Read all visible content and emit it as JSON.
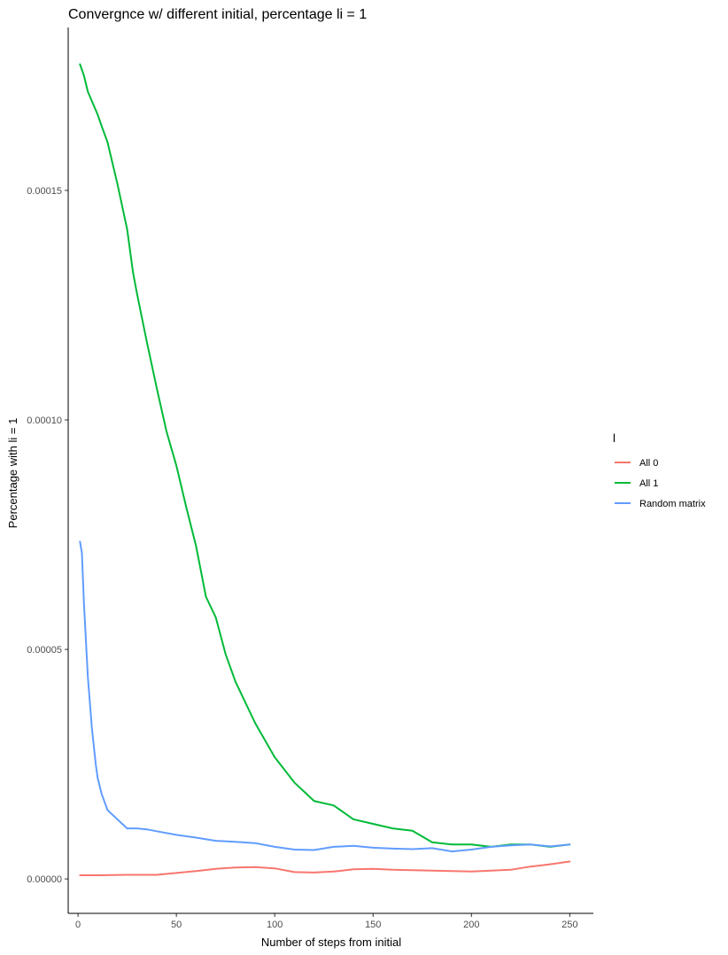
{
  "chart_data": {
    "type": "line",
    "title": "Convergnce w/ different initial, percentage li = 1",
    "xlabel": "Number of steps from initial",
    "ylabel": "Percentage with li = 1",
    "xlim": [
      -5,
      262
    ],
    "ylim": [
      -7.5e-06,
      0.0001855
    ],
    "x_ticks": [
      0,
      50,
      100,
      150,
      200,
      250
    ],
    "y_ticks": [
      0.0,
      5e-05,
      0.0001,
      0.00015
    ],
    "x_tick_labels": [
      "0",
      "50",
      "100",
      "150",
      "200",
      "250"
    ],
    "y_tick_labels": [
      "0.00000",
      "0.00005",
      "0.00010",
      "0.00015"
    ],
    "grid": false,
    "legend": {
      "title": "l",
      "placement": "right",
      "entries": [
        "All 0",
        "All 1",
        "Random matrix"
      ]
    },
    "series": [
      {
        "name": "All 0",
        "color": "#F8766D",
        "x": [
          1,
          10,
          25,
          40,
          50,
          60,
          70,
          80,
          90,
          100,
          110,
          120,
          130,
          140,
          150,
          160,
          170,
          180,
          190,
          200,
          210,
          220,
          230,
          240,
          250
        ],
        "y": [
          8e-07,
          8e-07,
          9e-07,
          9e-07,
          1.3e-06,
          1.7e-06,
          2.2e-06,
          2.5e-06,
          2.6e-06,
          2.3e-06,
          1.5e-06,
          1.4e-06,
          1.6e-06,
          2.1e-06,
          2.2e-06,
          2e-06,
          1.9e-06,
          1.8e-06,
          1.7e-06,
          1.6e-06,
          1.8e-06,
          2e-06,
          2.7e-06,
          3.2e-06,
          3.8e-06
        ]
      },
      {
        "name": "All 1",
        "color": "#00BA38",
        "x": [
          1,
          3,
          5,
          8,
          10,
          12,
          15,
          20,
          25,
          28,
          30,
          35,
          40,
          45,
          50,
          55,
          60,
          65,
          70,
          75,
          80,
          90,
          100,
          110,
          120,
          130,
          140,
          150,
          160,
          170,
          180,
          190,
          200,
          210,
          220,
          230,
          240,
          250
        ],
        "y": [
          0.0001775,
          0.000175,
          0.0001715,
          0.0001685,
          0.0001665,
          0.000164,
          0.0001605,
          0.0001515,
          0.0001415,
          0.000132,
          0.0001275,
          0.000117,
          0.000107,
          9.75e-05,
          9e-05,
          8.1e-05,
          7.25e-05,
          6.15e-05,
          5.7e-05,
          4.9e-05,
          4.3e-05,
          3.4e-05,
          2.65e-05,
          2.1e-05,
          1.7e-05,
          1.6e-05,
          1.3e-05,
          1.2e-05,
          1.1e-05,
          1.05e-05,
          8e-06,
          7.5e-06,
          7.5e-06,
          7e-06,
          7.5e-06,
          7.5e-06,
          7e-06,
          7.5e-06
        ]
      },
      {
        "name": "Random matrix",
        "color": "#619CFF",
        "x": [
          1,
          2,
          3,
          5,
          7,
          9,
          10,
          12,
          15,
          20,
          25,
          30,
          35,
          40,
          50,
          60,
          70,
          80,
          90,
          100,
          110,
          120,
          130,
          140,
          150,
          160,
          170,
          180,
          190,
          200,
          210,
          220,
          230,
          240,
          250
        ],
        "y": [
          7.35e-05,
          7.1e-05,
          6e-05,
          4.4e-05,
          3.3e-05,
          2.5e-05,
          2.2e-05,
          1.85e-05,
          1.5e-05,
          1.3e-05,
          1.1e-05,
          1.1e-05,
          1.08e-05,
          1.04e-05,
          9.6e-06,
          9e-06,
          8.3e-06,
          8.1e-06,
          7.8e-06,
          7e-06,
          6.4e-06,
          6.3e-06,
          7e-06,
          7.2e-06,
          6.8e-06,
          6.6e-06,
          6.5e-06,
          6.7e-06,
          6e-06,
          6.4e-06,
          7e-06,
          7.3e-06,
          7.5e-06,
          7.1e-06,
          7.5e-06
        ]
      }
    ]
  }
}
